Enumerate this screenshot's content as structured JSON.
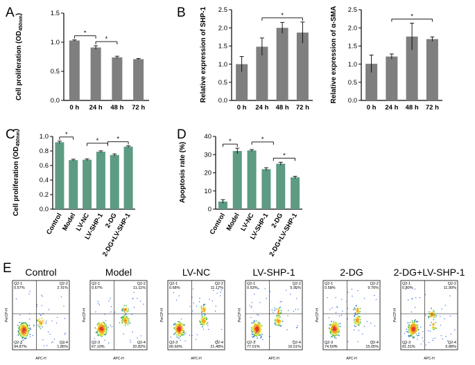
{
  "panel_letters": [
    "A",
    "B",
    "C",
    "D",
    "E"
  ],
  "colors": {
    "gray_bar": "#7f7f7f",
    "green_bar": "#5d9b83",
    "axis": "#000000"
  },
  "chart_data": [
    {
      "id": "A",
      "type": "bar",
      "categories": [
        "0 h",
        "24 h",
        "48 h",
        "72 h"
      ],
      "values": [
        1.03,
        0.91,
        0.74,
        0.71
      ],
      "errors": [
        0.01,
        0.03,
        0.02,
        0.01
      ],
      "ylabel": "Cell proliferation (OD",
      "ylabel_sub": "450nm",
      "ylabel_end": ")",
      "ylim": [
        0,
        1.5
      ],
      "yticks": [
        0.0,
        0.5,
        1.0,
        1.5
      ],
      "ytick_labels": [
        "0.0",
        "0.5",
        "1.0",
        "1.5"
      ],
      "color": "#7f7f7f",
      "significance": [
        {
          "from": 0,
          "to": 1,
          "label": "*"
        },
        {
          "from": 1,
          "to": 2,
          "label": "*"
        }
      ]
    },
    {
      "id": "B1",
      "type": "bar",
      "categories": [
        "0 h",
        "24 h",
        "48 h",
        "72 h"
      ],
      "values": [
        1.0,
        1.48,
        2.0,
        1.87
      ],
      "errors": [
        0.21,
        0.24,
        0.15,
        0.29
      ],
      "ylabel": "Relative expression of SHP-1",
      "ylim": [
        0,
        2.5
      ],
      "yticks": [
        0.0,
        0.5,
        1.0,
        1.5,
        2.0,
        2.5
      ],
      "ytick_labels": [
        "0.0",
        "0.5",
        "1.0",
        "1.5",
        "2.0",
        "2.5"
      ],
      "color": "#7f7f7f",
      "significance": [
        {
          "from": 1,
          "to": 3,
          "label": "*"
        }
      ]
    },
    {
      "id": "B2",
      "type": "bar",
      "categories": [
        "0 h",
        "24 h",
        "48 h",
        "72 h"
      ],
      "values": [
        1.01,
        1.21,
        1.76,
        1.69
      ],
      "errors": [
        0.24,
        0.07,
        0.37,
        0.06
      ],
      "ylabel": "Relative expression of α-SMA",
      "ylim": [
        0,
        2.5
      ],
      "yticks": [
        0.0,
        0.5,
        1.0,
        1.5,
        2.0,
        2.5
      ],
      "ytick_labels": [
        "0.0",
        "0.5",
        "1.0",
        "1.5",
        "2.0",
        "2.5"
      ],
      "color": "#7f7f7f",
      "significance": [
        {
          "from": 1,
          "to": 3,
          "label": "*"
        }
      ]
    },
    {
      "id": "C",
      "type": "bar",
      "categories": [
        "Control",
        "Model",
        "LV-NC",
        "LV-SHP-1",
        "2-DG",
        "2-DG+LV-SHP-1"
      ],
      "values": [
        0.92,
        0.675,
        0.68,
        0.79,
        0.745,
        0.86
      ],
      "errors": [
        0.015,
        0.012,
        0.012,
        0.012,
        0.015,
        0.01
      ],
      "ylabel": "Cell proliferation (OD",
      "ylabel_sub": "450nm",
      "ylabel_end": ")",
      "ylim": [
        0,
        1.0
      ],
      "yticks": [
        0.0,
        0.2,
        0.4,
        0.6,
        0.8,
        1.0
      ],
      "ytick_labels": [
        "0.0",
        "0.2",
        "0.4",
        "0.6",
        "0.8",
        "1.0"
      ],
      "color": "#5d9b83",
      "significance": [
        {
          "from": 0,
          "to": 1,
          "label": "*"
        },
        {
          "from": 2,
          "to": 3.5,
          "label": "*"
        },
        {
          "from": 3.5,
          "to": 5,
          "label": "*"
        }
      ]
    },
    {
      "id": "D",
      "type": "bar",
      "categories": [
        "Control",
        "Model",
        "LV-NC",
        "LV-SHP-1",
        "2-DG",
        "2-DG+LV-SHP-1"
      ],
      "values": [
        4.2,
        32.0,
        32.3,
        22.0,
        25.0,
        17.5
      ],
      "errors": [
        1.0,
        1.5,
        0.5,
        0.8,
        0.8,
        0.6
      ],
      "ylabel": "Apoptosis rate (%)",
      "ylim": [
        0,
        40
      ],
      "yticks": [
        0,
        10,
        20,
        30,
        40
      ],
      "ytick_labels": [
        "0",
        "10",
        "20",
        "30",
        "40"
      ],
      "color": "#5d9b83",
      "significance": [
        {
          "from": 0,
          "to": 1,
          "label": "*"
        },
        {
          "from": 2,
          "to": 3.5,
          "label": "*"
        },
        {
          "from": 3.5,
          "to": 5,
          "label": "*"
        }
      ]
    }
  ],
  "flow": {
    "xaxis_label": "APC-H",
    "yaxis_label": "PerCP-H",
    "panels": [
      {
        "title": "Control",
        "q": [
          "Q2-1\n0.57%",
          "Q2-2\n2.71%",
          "Q2-3\n94.87%",
          "Q2-4\n1.85%"
        ]
      },
      {
        "title": "Model",
        "q": [
          "Q2-1\n0.67%",
          "Q2-2\n11.11%",
          "Q2-3\n67.10%",
          "Q2-4\n20.82%"
        ]
      },
      {
        "title": "LV-NC",
        "q": [
          "Q2-1\n0.68%",
          "Q2-2\n11.17%",
          "Q2-3\n66.66%",
          "Q2-4\n21.48%"
        ]
      },
      {
        "title": "LV-SHP-1",
        "q": [
          "Q2-1\n0.53%",
          "Q2-2\n5.95%",
          "Q2-3\n77.01%",
          "Q2-4\n16.51%"
        ]
      },
      {
        "title": "2-DG",
        "q": [
          "Q2-1\n0.59%",
          "Q2-2\n9.76%",
          "Q2-3\n74.50%",
          "Q2-4\n15.05%"
        ]
      },
      {
        "title": "2-DG+LV-SHP-1",
        "q": [
          "Q2-1\n0.80%",
          "Q2-2\n11.90%",
          "Q2-3\n81.31%",
          "Q2-4\n5.88%"
        ]
      }
    ]
  }
}
